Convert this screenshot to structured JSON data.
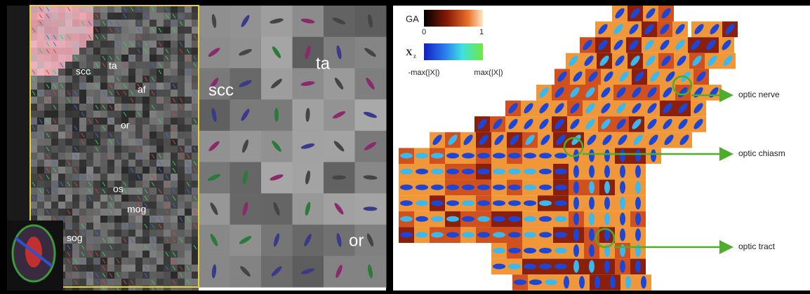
{
  "left_panel": {
    "labels": [
      "scc",
      "ta",
      "af",
      "or",
      "os",
      "mog",
      "sog"
    ]
  },
  "middle_panel": {
    "labels": [
      "ta",
      "scc",
      "or"
    ]
  },
  "right_panel": {
    "colorbar_ga": {
      "title": "GA",
      "min_label": 0,
      "max_label": 1
    },
    "colorbar_x": {
      "title": "X",
      "subscript": "z",
      "min_label": "-max(|X|)",
      "max_label": "max(|X|)"
    },
    "annotations": [
      "optic nerve",
      "optic chiasm",
      "optic tract"
    ]
  }
}
